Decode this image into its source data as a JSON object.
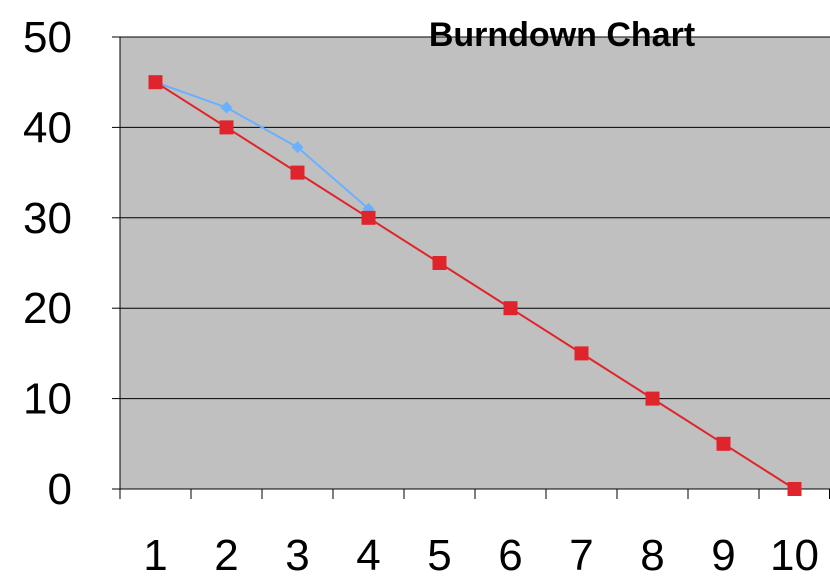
{
  "chart_data": {
    "type": "line",
    "title": "Burndown Chart",
    "xlabel": "",
    "ylabel": "",
    "categories": [
      "1",
      "2",
      "3",
      "4",
      "5",
      "6",
      "7",
      "8",
      "9",
      "10"
    ],
    "ylim": [
      0,
      50
    ],
    "yticks": [
      0,
      10,
      20,
      30,
      40,
      50
    ],
    "grid": true,
    "background_color": "#c0c0c0",
    "series": [
      {
        "color": "#6ab0ff",
        "marker": "diamond",
        "values": [
          45,
          42.2,
          37.8,
          31,
          null,
          null,
          null,
          null,
          null,
          null
        ]
      },
      {
        "color": "#e0242c",
        "marker": "square",
        "values": [
          45,
          40,
          35,
          30,
          25,
          20,
          15,
          10,
          5,
          0
        ]
      }
    ]
  }
}
